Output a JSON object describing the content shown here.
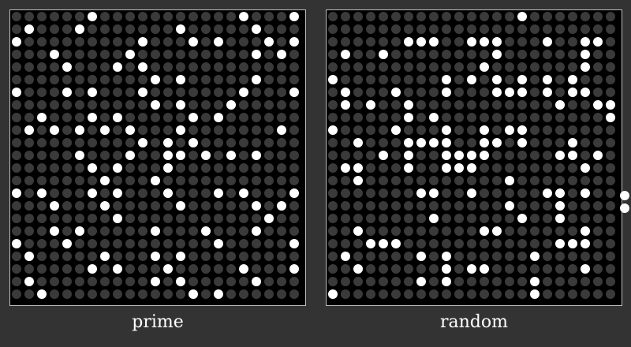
{
  "panels": {
    "prime": {
      "label": "prime",
      "rows": 23,
      "cols": 23,
      "on_cells": [
        [
          0,
          6
        ],
        [
          0,
          18
        ],
        [
          0,
          22
        ],
        [
          1,
          1
        ],
        [
          1,
          5
        ],
        [
          1,
          13
        ],
        [
          1,
          19
        ],
        [
          2,
          0
        ],
        [
          2,
          10
        ],
        [
          2,
          14
        ],
        [
          2,
          16
        ],
        [
          2,
          20
        ],
        [
          2,
          22
        ],
        [
          3,
          3
        ],
        [
          3,
          9
        ],
        [
          3,
          19
        ],
        [
          3,
          21
        ],
        [
          4,
          4
        ],
        [
          4,
          8
        ],
        [
          4,
          10
        ],
        [
          5,
          11
        ],
        [
          5,
          13
        ],
        [
          5,
          19
        ],
        [
          6,
          0
        ],
        [
          6,
          4
        ],
        [
          6,
          6
        ],
        [
          6,
          10
        ],
        [
          6,
          18
        ],
        [
          6,
          22
        ],
        [
          7,
          11
        ],
        [
          7,
          13
        ],
        [
          7,
          17
        ],
        [
          8,
          2
        ],
        [
          8,
          6
        ],
        [
          8,
          8
        ],
        [
          8,
          14
        ],
        [
          8,
          16
        ],
        [
          9,
          1
        ],
        [
          9,
          3
        ],
        [
          9,
          5
        ],
        [
          9,
          7
        ],
        [
          9,
          9
        ],
        [
          9,
          13
        ],
        [
          9,
          21
        ],
        [
          10,
          10
        ],
        [
          10,
          12
        ],
        [
          10,
          14
        ],
        [
          11,
          5
        ],
        [
          11,
          9
        ],
        [
          11,
          12
        ],
        [
          11,
          13
        ],
        [
          11,
          15
        ],
        [
          11,
          17
        ],
        [
          11,
          19
        ],
        [
          12,
          6
        ],
        [
          12,
          8
        ],
        [
          12,
          12
        ],
        [
          13,
          7
        ],
        [
          13,
          11
        ],
        [
          14,
          0
        ],
        [
          14,
          2
        ],
        [
          14,
          6
        ],
        [
          14,
          8
        ],
        [
          14,
          12
        ],
        [
          14,
          16
        ],
        [
          14,
          18
        ],
        [
          14,
          22
        ],
        [
          15,
          3
        ],
        [
          15,
          7
        ],
        [
          15,
          13
        ],
        [
          15,
          19
        ],
        [
          15,
          21
        ],
        [
          16,
          8
        ],
        [
          16,
          20
        ],
        [
          17,
          3
        ],
        [
          17,
          5
        ],
        [
          17,
          11
        ],
        [
          17,
          15
        ],
        [
          17,
          19
        ],
        [
          18,
          0
        ],
        [
          18,
          4
        ],
        [
          18,
          16
        ],
        [
          18,
          22
        ],
        [
          19,
          1
        ],
        [
          19,
          7
        ],
        [
          19,
          11
        ],
        [
          19,
          13
        ],
        [
          20,
          6
        ],
        [
          20,
          8
        ],
        [
          20,
          12
        ],
        [
          20,
          18
        ],
        [
          20,
          22
        ],
        [
          21,
          1
        ],
        [
          21,
          11
        ],
        [
          21,
          13
        ],
        [
          21,
          19
        ],
        [
          22,
          2
        ],
        [
          22,
          14
        ],
        [
          22,
          16
        ]
      ]
    },
    "random": {
      "label": "random",
      "rows": 23,
      "cols": 23,
      "on_cells": [
        [
          0,
          15
        ],
        [
          2,
          6
        ],
        [
          2,
          7
        ],
        [
          2,
          8
        ],
        [
          2,
          11
        ],
        [
          2,
          12
        ],
        [
          2,
          13
        ],
        [
          2,
          17
        ],
        [
          2,
          20
        ],
        [
          2,
          21
        ],
        [
          3,
          1
        ],
        [
          3,
          4
        ],
        [
          3,
          13
        ],
        [
          3,
          20
        ],
        [
          4,
          12
        ],
        [
          4,
          20
        ],
        [
          5,
          0
        ],
        [
          5,
          9
        ],
        [
          5,
          11
        ],
        [
          5,
          13
        ],
        [
          5,
          15
        ],
        [
          5,
          17
        ],
        [
          5,
          19
        ],
        [
          6,
          1
        ],
        [
          6,
          5
        ],
        [
          6,
          9
        ],
        [
          6,
          13
        ],
        [
          6,
          14
        ],
        [
          6,
          15
        ],
        [
          6,
          17
        ],
        [
          6,
          19
        ],
        [
          6,
          20
        ],
        [
          7,
          1
        ],
        [
          7,
          3
        ],
        [
          7,
          6
        ],
        [
          7,
          18
        ],
        [
          7,
          21
        ],
        [
          7,
          22
        ],
        [
          8,
          6
        ],
        [
          8,
          8
        ],
        [
          8,
          22
        ],
        [
          9,
          0
        ],
        [
          9,
          5
        ],
        [
          9,
          9
        ],
        [
          9,
          12
        ],
        [
          9,
          14
        ],
        [
          9,
          15
        ],
        [
          10,
          2
        ],
        [
          10,
          6
        ],
        [
          10,
          7
        ],
        [
          10,
          8
        ],
        [
          10,
          9
        ],
        [
          10,
          12
        ],
        [
          10,
          13
        ],
        [
          10,
          15
        ],
        [
          10,
          19
        ],
        [
          11,
          4
        ],
        [
          11,
          6
        ],
        [
          11,
          9
        ],
        [
          11,
          10
        ],
        [
          11,
          11
        ],
        [
          11,
          12
        ],
        [
          11,
          18
        ],
        [
          11,
          19
        ],
        [
          11,
          21
        ],
        [
          12,
          1
        ],
        [
          12,
          2
        ],
        [
          12,
          6
        ],
        [
          12,
          9
        ],
        [
          12,
          10
        ],
        [
          12,
          11
        ],
        [
          12,
          20
        ],
        [
          13,
          2
        ],
        [
          13,
          14
        ],
        [
          14,
          7
        ],
        [
          14,
          8
        ],
        [
          14,
          11
        ],
        [
          14,
          17
        ],
        [
          14,
          18
        ],
        [
          14,
          20
        ],
        [
          15,
          14
        ],
        [
          15,
          18
        ],
        [
          16,
          8
        ],
        [
          16,
          15
        ],
        [
          16,
          18
        ],
        [
          17,
          2
        ],
        [
          17,
          12
        ],
        [
          17,
          13
        ],
        [
          17,
          20
        ],
        [
          18,
          3
        ],
        [
          18,
          4
        ],
        [
          18,
          5
        ],
        [
          18,
          18
        ],
        [
          18,
          19
        ],
        [
          18,
          20
        ],
        [
          19,
          1
        ],
        [
          19,
          7
        ],
        [
          19,
          9
        ],
        [
          19,
          16
        ],
        [
          20,
          2
        ],
        [
          20,
          9
        ],
        [
          20,
          11
        ],
        [
          20,
          12
        ],
        [
          20,
          20
        ],
        [
          21,
          7
        ],
        [
          21,
          9
        ],
        [
          21,
          16
        ],
        [
          22,
          0
        ],
        [
          22,
          16
        ]
      ]
    }
  },
  "colors": {
    "background": "#333333",
    "panel_background": "#000000",
    "dot_off": "#3a3a3a",
    "dot_on": "#ffffff",
    "panel_border": "#bdbdbd"
  }
}
